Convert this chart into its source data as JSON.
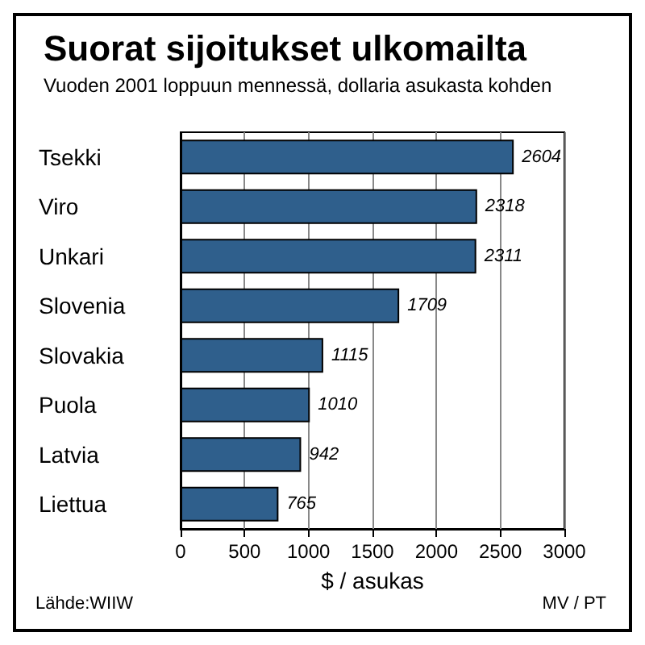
{
  "chart_data": {
    "type": "bar",
    "orientation": "horizontal",
    "title": "Suorat sijoitukset ulkomailta",
    "subtitle": "Vuoden 2001 loppuun mennessä, dollaria asukasta kohden",
    "xlabel": "$ / asukas",
    "categories": [
      "Tsekki",
      "Viro",
      "Unkari",
      "Slovenia",
      "Slovakia",
      "Puola",
      "Latvia",
      "Liettua"
    ],
    "values": [
      2604,
      2318,
      2311,
      1709,
      1115,
      1010,
      942,
      765
    ],
    "color": "#2f5f8c",
    "data_labels": true,
    "xlim": [
      0,
      3000
    ],
    "xticks": [
      0,
      500,
      1000,
      1500,
      2000,
      2500,
      3000
    ],
    "grid": "x",
    "annotations": [
      "Lähde:WIIW",
      "MV / PT"
    ]
  }
}
